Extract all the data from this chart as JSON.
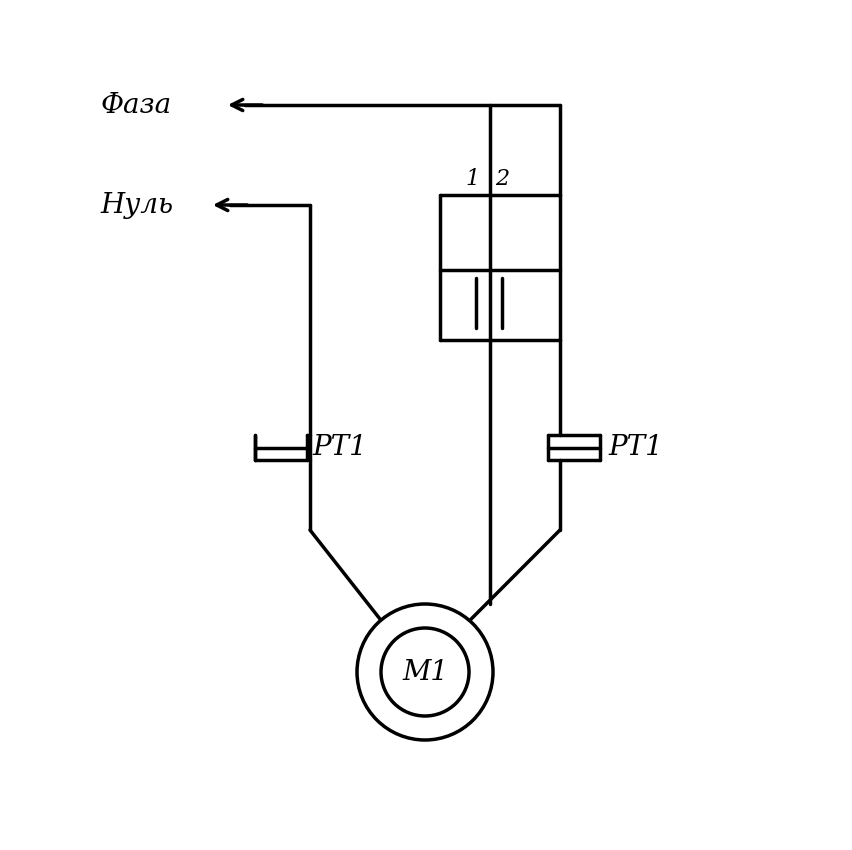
{
  "bg_color": "#ffffff",
  "line_color": "#000000",
  "line_width": 2.5,
  "fig_width": 8.52,
  "fig_height": 8.5,
  "faza_label": "Фаза",
  "nul_label": "Нуль",
  "rt1_label": "РТ1",
  "m1_label": "М1",
  "label_1": "1",
  "label_2": "2",
  "font_size_main": 20,
  "font_size_small": 16
}
